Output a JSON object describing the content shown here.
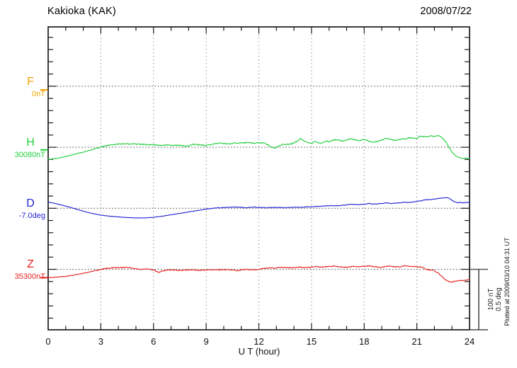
{
  "header": {
    "title": "Kakioka (KAK)",
    "date": "2008/07/22"
  },
  "xaxis": {
    "label": "U T (hour)",
    "tick_labels": [
      "0",
      "3",
      "6",
      "9",
      "12",
      "15",
      "18",
      "21",
      "24"
    ]
  },
  "notes": {
    "plotted_at": "Plotted at 2009/03/10 04:31 UT"
  },
  "scale_bar": {
    "line1": "100 nT",
    "line2": "0.5 deg"
  },
  "chart_data": {
    "type": "line",
    "title": "Kakioka (KAK) magnetogram",
    "date": "2008/07/22",
    "xlabel": "U T (hour)",
    "xlim": [
      0,
      24
    ],
    "x_major_tick_step": 3,
    "x_minor_tick_step": 1,
    "grid": "dotted vertical lines every 3 h; dotted horizontal baseline per channel",
    "amplitude_scale": {
      "per_division_nT": 100,
      "per_division_deg": 0.5
    },
    "series": [
      {
        "id": "F",
        "label": "F",
        "baseline_label": "0nT",
        "unit": "nT",
        "color": "#F2A300",
        "edge_marker_offset": -6,
        "points": []
      },
      {
        "id": "H",
        "label": "H",
        "baseline_label": "30080nT",
        "unit": "nT",
        "color": "#22CF3E",
        "edge_marker_offset": -4.3,
        "points": [
          [
            0,
            -19.6
          ],
          [
            0.5,
            -18.4
          ],
          [
            1,
            -14.9
          ],
          [
            1.5,
            -11.5
          ],
          [
            2,
            -8
          ],
          [
            2.5,
            -3.9
          ],
          [
            3,
            0.1
          ],
          [
            3.3,
            2.4
          ],
          [
            3.6,
            4.2
          ],
          [
            4,
            5.3
          ],
          [
            4.5,
            5.6
          ],
          [
            5,
            5.3
          ],
          [
            5.5,
            4.8
          ],
          [
            6,
            4.2
          ],
          [
            6.5,
            3
          ],
          [
            7,
            3.6
          ],
          [
            7.5,
            3
          ],
          [
            8,
            1.9
          ],
          [
            8.2,
            5
          ],
          [
            8.5,
            4.5
          ],
          [
            9,
            3
          ],
          [
            9.3,
            4.8
          ],
          [
            9.6,
            6.5
          ],
          [
            10,
            6.5
          ],
          [
            10.3,
            5.3
          ],
          [
            10.6,
            7.1
          ],
          [
            11,
            7.1
          ],
          [
            11.4,
            7.6
          ],
          [
            11.7,
            6.5
          ],
          [
            12,
            7.6
          ],
          [
            12.3,
            7.1
          ],
          [
            12.5,
            4.2
          ],
          [
            12.7,
            0.7
          ],
          [
            12.9,
            -1.6
          ],
          [
            13.1,
            1.3
          ],
          [
            13.4,
            5.3
          ],
          [
            13.7,
            4.2
          ],
          [
            14,
            7.1
          ],
          [
            14.2,
            10
          ],
          [
            14.35,
            14.6
          ],
          [
            14.5,
            11.7
          ],
          [
            14.75,
            8.2
          ],
          [
            15,
            6.5
          ],
          [
            15.2,
            9.4
          ],
          [
            15.4,
            7.6
          ],
          [
            15.6,
            7.1
          ],
          [
            15.8,
            10
          ],
          [
            16,
            9.4
          ],
          [
            16.2,
            11.7
          ],
          [
            16.5,
            12.3
          ],
          [
            16.75,
            10
          ],
          [
            17,
            12.3
          ],
          [
            17.25,
            13.4
          ],
          [
            17.5,
            12.3
          ],
          [
            17.75,
            11.1
          ],
          [
            18,
            12.9
          ],
          [
            18.3,
            10
          ],
          [
            18.6,
            8.2
          ],
          [
            19,
            11.7
          ],
          [
            19.3,
            14.6
          ],
          [
            19.5,
            12.9
          ],
          [
            19.8,
            11.1
          ],
          [
            20,
            12.9
          ],
          [
            20.3,
            14
          ],
          [
            20.6,
            15.8
          ],
          [
            21,
            14.6
          ],
          [
            21.2,
            18.1
          ],
          [
            21.5,
            17.5
          ],
          [
            21.8,
            18.7
          ],
          [
            22,
            17.5
          ],
          [
            22.2,
            19.2
          ],
          [
            22.4,
            16.3
          ],
          [
            22.6,
            10.5
          ],
          [
            22.8,
            1.3
          ],
          [
            23,
            -8
          ],
          [
            23.2,
            -13.8
          ],
          [
            23.4,
            -16.7
          ],
          [
            23.6,
            -18.4
          ],
          [
            23.8,
            -17.8
          ],
          [
            24,
            -19
          ]
        ]
      },
      {
        "id": "D",
        "label": "D",
        "baseline_label": "-7.0deg",
        "unit": "deg",
        "color": "#2424D6",
        "edge_marker_offset": null,
        "points": [
          [
            0,
            0.051
          ],
          [
            0.4,
            0.039
          ],
          [
            0.8,
            0.025
          ],
          [
            1.2,
            0.01
          ],
          [
            1.6,
            -0.007
          ],
          [
            2,
            -0.024
          ],
          [
            2.5,
            -0.042
          ],
          [
            3,
            -0.056
          ],
          [
            3.5,
            -0.065
          ],
          [
            4,
            -0.071
          ],
          [
            4.5,
            -0.076
          ],
          [
            5,
            -0.079
          ],
          [
            5.5,
            -0.079
          ],
          [
            6,
            -0.074
          ],
          [
            6.5,
            -0.065
          ],
          [
            7,
            -0.053
          ],
          [
            7.5,
            -0.042
          ],
          [
            8,
            -0.03
          ],
          [
            8.5,
            -0.019
          ],
          [
            9,
            -0.007
          ],
          [
            9.5,
            0.001
          ],
          [
            10,
            0.006
          ],
          [
            10.5,
            0.009
          ],
          [
            11,
            0.009
          ],
          [
            11.3,
            0.004
          ],
          [
            11.6,
            0.009
          ],
          [
            12,
            0.007
          ],
          [
            12.5,
            0.005
          ],
          [
            13,
            0.008
          ],
          [
            13.5,
            0.005
          ],
          [
            14,
            0.008
          ],
          [
            14.5,
            0.01
          ],
          [
            15,
            0.013
          ],
          [
            15.5,
            0.016
          ],
          [
            16,
            0.021
          ],
          [
            16.5,
            0.021
          ],
          [
            17,
            0.027
          ],
          [
            17.3,
            0.032
          ],
          [
            17.6,
            0.028
          ],
          [
            18,
            0.033
          ],
          [
            18.3,
            0.039
          ],
          [
            18.6,
            0.034
          ],
          [
            19,
            0.039
          ],
          [
            19.3,
            0.045
          ],
          [
            19.6,
            0.039
          ],
          [
            20,
            0.045
          ],
          [
            20.3,
            0.05
          ],
          [
            20.6,
            0.048
          ],
          [
            21,
            0.056
          ],
          [
            21.3,
            0.064
          ],
          [
            21.6,
            0.07
          ],
          [
            22,
            0.076
          ],
          [
            22.3,
            0.082
          ],
          [
            22.5,
            0.085
          ],
          [
            22.7,
            0.087
          ],
          [
            22.9,
            0.077
          ],
          [
            23.1,
            0.056
          ],
          [
            23.3,
            0.045
          ],
          [
            23.5,
            0.048
          ],
          [
            23.7,
            0.045
          ],
          [
            24,
            0.048
          ]
        ]
      },
      {
        "id": "Z",
        "label": "Z",
        "baseline_label": "35300nT",
        "unit": "nT",
        "color": "#E62222",
        "edge_marker_offset": -13.6,
        "points": [
          [
            0,
            -13.8
          ],
          [
            0.5,
            -12.6
          ],
          [
            1,
            -11.5
          ],
          [
            1.5,
            -9.2
          ],
          [
            2,
            -6.3
          ],
          [
            2.5,
            -3.4
          ],
          [
            3,
            -0.5
          ],
          [
            3.3,
            1.3
          ],
          [
            3.6,
            2.4
          ],
          [
            4,
            3
          ],
          [
            4.5,
            3
          ],
          [
            5,
            1.3
          ],
          [
            5.3,
            0.1
          ],
          [
            5.6,
            0.1
          ],
          [
            6,
            -1
          ],
          [
            6.3,
            -4.5
          ],
          [
            6.5,
            -2.8
          ],
          [
            6.8,
            -1
          ],
          [
            7,
            -1
          ],
          [
            7.5,
            -1.6
          ],
          [
            8,
            -1
          ],
          [
            8.5,
            -1.6
          ],
          [
            9,
            -1
          ],
          [
            9.5,
            -1
          ],
          [
            10,
            -0.5
          ],
          [
            10.5,
            -1
          ],
          [
            10.8,
            -2.2
          ],
          [
            11,
            -1
          ],
          [
            11.3,
            0.1
          ],
          [
            11.6,
            -1
          ],
          [
            12,
            0.1
          ],
          [
            12.3,
            1.9
          ],
          [
            12.6,
            2.4
          ],
          [
            13,
            2.4
          ],
          [
            13.3,
            3.6
          ],
          [
            13.6,
            2.4
          ],
          [
            14,
            3
          ],
          [
            14.3,
            4.2
          ],
          [
            14.6,
            2.4
          ],
          [
            15,
            3.6
          ],
          [
            15.3,
            4.8
          ],
          [
            15.6,
            3.6
          ],
          [
            16,
            4.8
          ],
          [
            16.3,
            5.3
          ],
          [
            16.6,
            4.2
          ],
          [
            17,
            3.6
          ],
          [
            17.3,
            4.8
          ],
          [
            17.6,
            4.2
          ],
          [
            18,
            4.8
          ],
          [
            18.3,
            5.9
          ],
          [
            18.6,
            4.2
          ],
          [
            19,
            3.6
          ],
          [
            19.3,
            5.3
          ],
          [
            19.6,
            4.8
          ],
          [
            20,
            3.6
          ],
          [
            20.3,
            5.9
          ],
          [
            20.6,
            4.8
          ],
          [
            21,
            4.2
          ],
          [
            21.3,
            3.6
          ],
          [
            21.5,
            0.1
          ],
          [
            21.8,
            -1
          ],
          [
            22,
            -2.2
          ],
          [
            22.2,
            -5.7
          ],
          [
            22.4,
            -10.9
          ],
          [
            22.6,
            -16.1
          ],
          [
            22.8,
            -19.6
          ],
          [
            23,
            -20.7
          ],
          [
            23.2,
            -19.6
          ],
          [
            23.5,
            -18.4
          ],
          [
            23.8,
            -17.8
          ],
          [
            24,
            -17.3
          ]
        ]
      }
    ]
  }
}
